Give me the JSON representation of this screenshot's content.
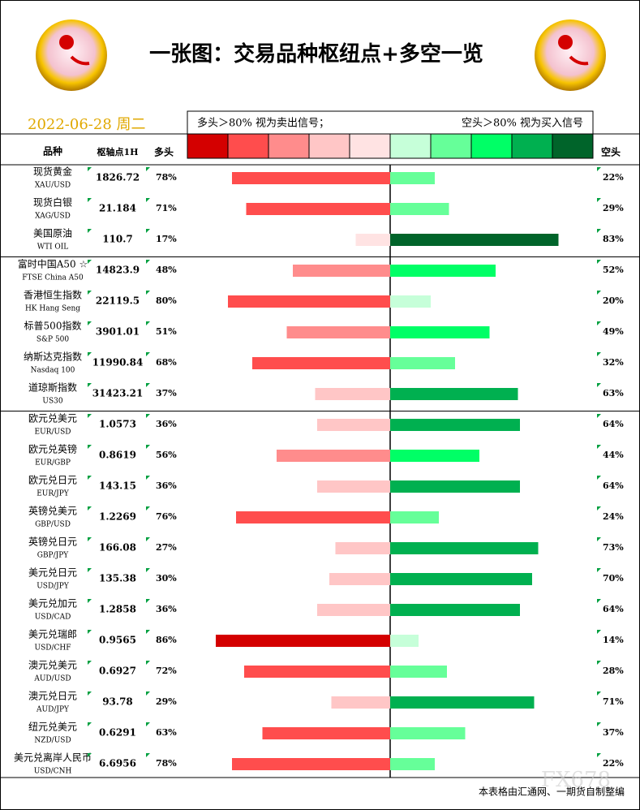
{
  "header": {
    "title": "一张图：交易品种枢纽点+多空一览",
    "date": "2022-06-28 周二"
  },
  "legend": {
    "long_note": "多头＞80% 视为卖出信号；",
    "short_note": "空头＞80% 视为买入信号",
    "colors": [
      "#d40000",
      "#ff4d4d",
      "#ff8c8c",
      "#ffc6c6",
      "#ffe3e3",
      "#c6ffd9",
      "#66ff99",
      "#00ff66",
      "#00b050",
      "#00642a"
    ]
  },
  "columns": {
    "name": "品种",
    "pivot": "枢轴点1H",
    "long": "多头",
    "short": "空头"
  },
  "groups": [
    {
      "rows": [
        {
          "name": "现货黄金",
          "code": "XAU/USD",
          "pivot": "1826.72",
          "long": 78,
          "long_label": "78%",
          "short": 22,
          "short_label": "22%"
        },
        {
          "name": "现货白银",
          "code": "XAG/USD",
          "pivot": "21.184",
          "long": 71,
          "long_label": "71%",
          "short": 29,
          "short_label": "29%"
        },
        {
          "name": "美国原油",
          "code": "WTI OIL",
          "pivot": "110.7",
          "long": 17,
          "long_label": "17%",
          "short": 83,
          "short_label": "83%"
        }
      ]
    },
    {
      "rows": [
        {
          "name": "富时中国A50 ☆",
          "code": "FTSE China A50",
          "pivot": "14823.9",
          "long": 48,
          "long_label": "48%",
          "short": 52,
          "short_label": "52%"
        },
        {
          "name": "香港恒生指数",
          "code": "HK Hang Seng",
          "pivot": "22119.5",
          "long": 80,
          "long_label": "80%",
          "short": 20,
          "short_label": "20%"
        },
        {
          "name": "标普500指数",
          "code": "S&P 500",
          "pivot": "3901.01",
          "long": 51,
          "long_label": "51%",
          "short": 49,
          "short_label": "49%"
        },
        {
          "name": "纳斯达克指数",
          "code": "Nasdaq 100",
          "pivot": "11990.84",
          "long": 68,
          "long_label": "68%",
          "short": 32,
          "short_label": "32%"
        },
        {
          "name": "道琼斯指数",
          "code": "US30",
          "pivot": "31423.21",
          "long": 37,
          "long_label": "37%",
          "short": 63,
          "short_label": "63%"
        }
      ]
    },
    {
      "rows": [
        {
          "name": "欧元兑美元",
          "code": "EUR/USD",
          "pivot": "1.0573",
          "long": 36,
          "long_label": "36%",
          "short": 64,
          "short_label": "64%"
        },
        {
          "name": "欧元兑英镑",
          "code": "EUR/GBP",
          "pivot": "0.8619",
          "long": 56,
          "long_label": "56%",
          "short": 44,
          "short_label": "44%"
        },
        {
          "name": "欧元兑日元",
          "code": "EUR/JPY",
          "pivot": "143.15",
          "long": 36,
          "long_label": "36%",
          "short": 64,
          "short_label": "64%"
        },
        {
          "name": "英镑兑美元",
          "code": "GBP/USD",
          "pivot": "1.2269",
          "long": 76,
          "long_label": "76%",
          "short": 24,
          "short_label": "24%"
        },
        {
          "name": "英镑兑日元",
          "code": "GBP/JPY",
          "pivot": "166.08",
          "long": 27,
          "long_label": "27%",
          "short": 73,
          "short_label": "73%"
        },
        {
          "name": "美元兑日元",
          "code": "USD/JPY",
          "pivot": "135.38",
          "long": 30,
          "long_label": "30%",
          "short": 70,
          "short_label": "70%"
        },
        {
          "name": "美元兑加元",
          "code": "USD/CAD",
          "pivot": "1.2858",
          "long": 36,
          "long_label": "36%",
          "short": 64,
          "short_label": "64%"
        },
        {
          "name": "美元兑瑞郎",
          "code": "USD/CHF",
          "pivot": "0.9565",
          "long": 86,
          "long_label": "86%",
          "short": 14,
          "short_label": "14%"
        },
        {
          "name": "澳元兑美元",
          "code": "AUD/USD",
          "pivot": "0.6927",
          "long": 72,
          "long_label": "72%",
          "short": 28,
          "short_label": "28%"
        },
        {
          "name": "澳元兑日元",
          "code": "AUD/JPY",
          "pivot": "93.78",
          "long": 29,
          "long_label": "29%",
          "short": 71,
          "short_label": "71%"
        },
        {
          "name": "纽元兑美元",
          "code": "NZD/USD",
          "pivot": "0.6291",
          "long": 63,
          "long_label": "63%",
          "short": 37,
          "short_label": "37%"
        },
        {
          "name": "美元兑离岸人民币",
          "code": "USD/CNH",
          "pivot": "6.6956",
          "long": 78,
          "long_label": "78%",
          "short": 22,
          "short_label": "22%"
        }
      ]
    }
  ],
  "footer": "本表格由汇通网、一期货自制整编",
  "watermark": "FX678"
}
